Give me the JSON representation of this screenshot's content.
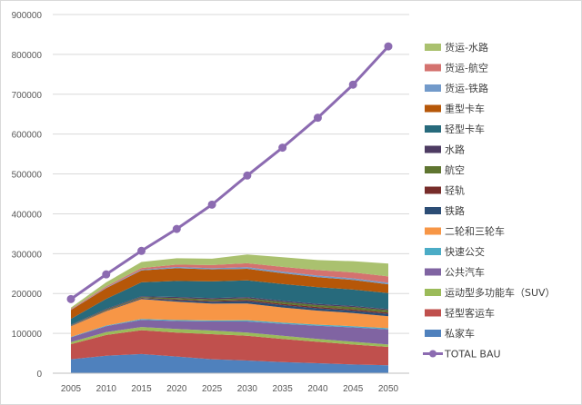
{
  "chart_data": {
    "type": "area",
    "subtype": "stacked-area-with-line",
    "title": "",
    "xlabel": "",
    "ylabel": "",
    "x": [
      2005,
      2010,
      2015,
      2020,
      2025,
      2030,
      2035,
      2040,
      2045,
      2050
    ],
    "ylim": [
      0,
      900000
    ],
    "yticks": [
      "0",
      "100000",
      "200000",
      "300000",
      "400000",
      "500000",
      "600000",
      "700000",
      "800000",
      "900000"
    ],
    "grid": "horizontal",
    "legend_position": "right",
    "series": [
      {
        "name": "私家车",
        "color": "#4f81bd",
        "values": [
          35000,
          44000,
          48000,
          42000,
          35000,
          32000,
          28000,
          25000,
          22000,
          20000
        ]
      },
      {
        "name": "轻型客运车",
        "color": "#c0504d",
        "values": [
          38000,
          52000,
          60000,
          60000,
          63000,
          62000,
          58000,
          54000,
          50000,
          46000
        ]
      },
      {
        "name": "运动型多功能车（SUV）",
        "color": "#9bbb59",
        "values": [
          5000,
          7000,
          8000,
          9000,
          9000,
          8000,
          8000,
          7000,
          7000,
          6000
        ]
      },
      {
        "name": "公共汽车",
        "color": "#8064a2",
        "values": [
          12000,
          15000,
          18000,
          20000,
          23000,
          28000,
          30000,
          33000,
          36000,
          38000
        ]
      },
      {
        "name": "快速公交",
        "color": "#4bacc6",
        "values": [
          1000,
          1500,
          2000,
          2500,
          2500,
          3000,
          3000,
          3000,
          3000,
          3000
        ]
      },
      {
        "name": "二轮和三轮车",
        "color": "#f79646",
        "values": [
          27000,
          36000,
          50000,
          46000,
          42000,
          42000,
          38000,
          35000,
          33000,
          30000
        ]
      },
      {
        "name": "铁路",
        "color": "#2c4d75",
        "values": [
          1000,
          1000,
          2000,
          4000,
          5000,
          6000,
          6000,
          6000,
          6000,
          6000
        ]
      },
      {
        "name": "轻轨",
        "color": "#772c2a",
        "values": [
          500,
          1000,
          1000,
          2000,
          2000,
          3000,
          3000,
          3000,
          3000,
          3000
        ]
      },
      {
        "name": "航空",
        "color": "#5f7530",
        "values": [
          1000,
          2000,
          2000,
          3000,
          4000,
          4000,
          5000,
          5000,
          6000,
          6000
        ]
      },
      {
        "name": "水路",
        "color": "#4d3b62",
        "values": [
          1000,
          2000,
          2000,
          3000,
          3000,
          3000,
          3000,
          3000,
          3000,
          3000
        ]
      },
      {
        "name": "轻型卡车",
        "color": "#276a7c",
        "values": [
          15000,
          25000,
          35000,
          40000,
          42000,
          42000,
          42000,
          42000,
          41000,
          40000
        ]
      },
      {
        "name": "重型卡车",
        "color": "#b65708",
        "values": [
          22000,
          27000,
          30000,
          32000,
          30000,
          29000,
          27000,
          25000,
          24000,
          22000
        ]
      },
      {
        "name": "货运-铁路",
        "color": "#729aca",
        "values": [
          1000,
          1500,
          2000,
          3000,
          3000,
          4000,
          4000,
          4000,
          4000,
          4000
        ]
      },
      {
        "name": "货运-航空",
        "color": "#d4726f",
        "values": [
          2000,
          3000,
          4000,
          6000,
          8000,
          10000,
          12000,
          14000,
          15000,
          16000
        ]
      },
      {
        "name": "货运-水路",
        "color": "#aac16f",
        "values": [
          3000,
          10000,
          15000,
          16000,
          16000,
          22000,
          24000,
          25000,
          28000,
          32000
        ]
      }
    ],
    "line_series": {
      "name": "TOTAL BAU",
      "color": "#8c6bb1",
      "values": [
        186000,
        248000,
        307000,
        362000,
        423000,
        496000,
        566000,
        641000,
        724000,
        820000
      ]
    }
  }
}
